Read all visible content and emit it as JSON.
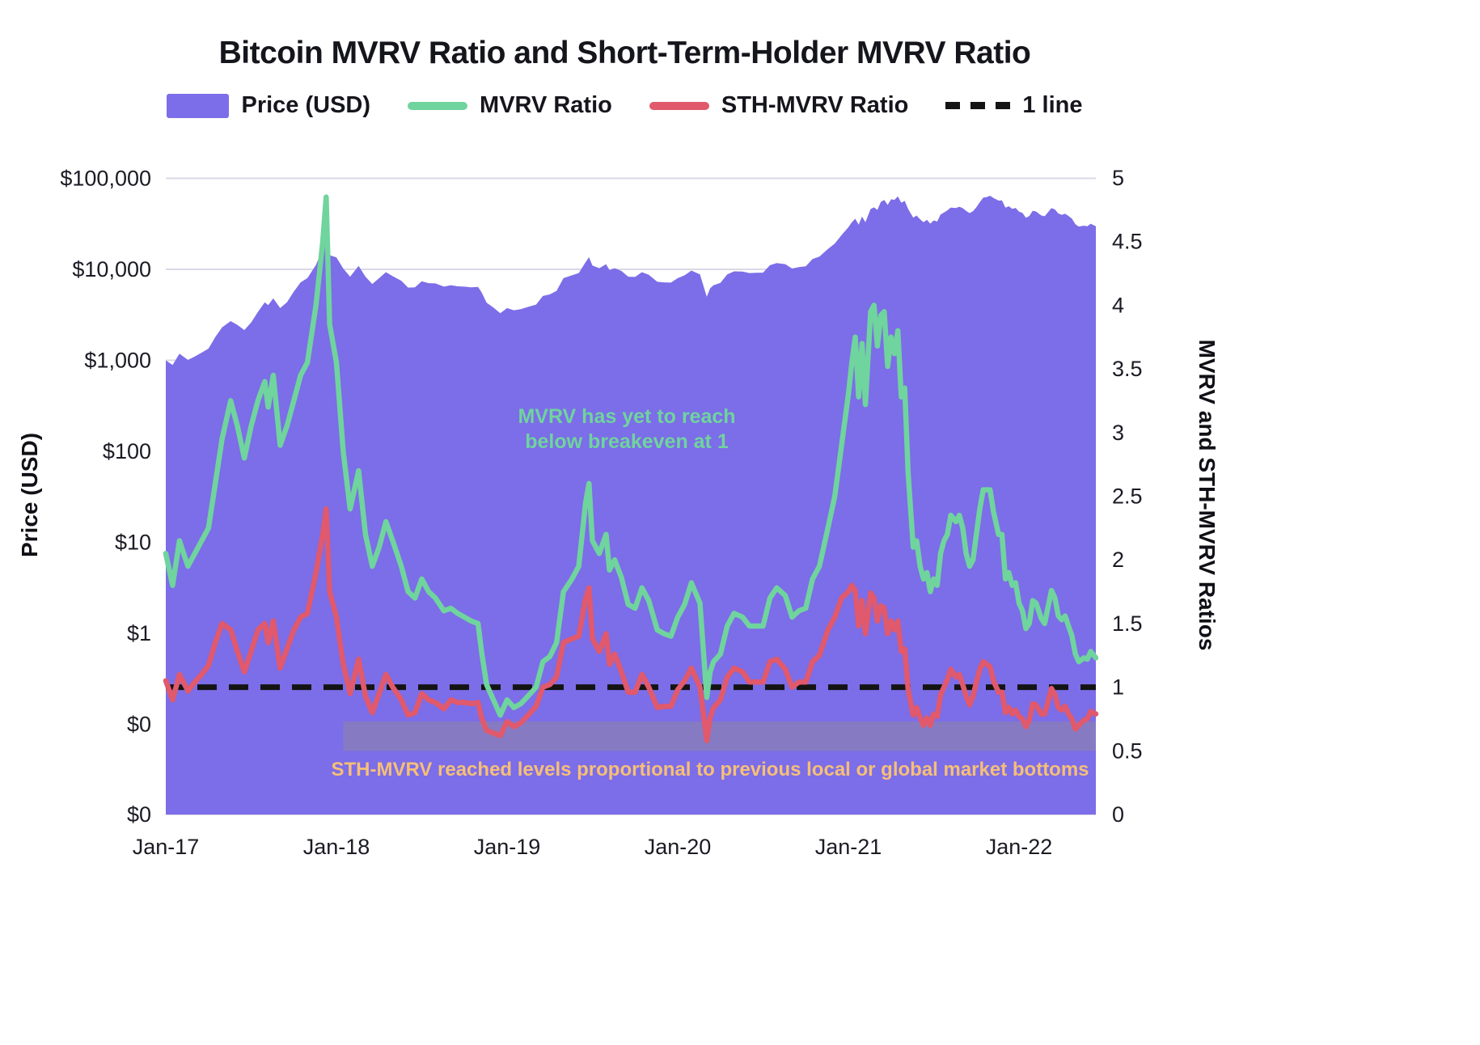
{
  "header": {
    "title": "Bitcoin MVRV Ratio and Short-Term-Holder MVRV Ratio"
  },
  "legend": {
    "items": [
      {
        "label": "Price (USD)",
        "swatch": "area",
        "color": "#7c6de8"
      },
      {
        "label": "MVRV Ratio",
        "swatch": "line",
        "color": "#6fd49d"
      },
      {
        "label": "STH-MVRV Ratio",
        "swatch": "line",
        "color": "#e0596c"
      },
      {
        "label": "1 line",
        "swatch": "dash",
        "color": "#141414"
      }
    ]
  },
  "chart_data": {
    "type": "area",
    "title": "Bitcoin MVRV Ratio and Short-Term-Holder MVRV Ratio",
    "x_unit": "decimal year (Jan 2017 - mid 2022)",
    "x": [
      2017.0,
      2017.04,
      2017.08,
      2017.13,
      2017.17,
      2017.21,
      2017.25,
      2017.29,
      2017.33,
      2017.38,
      2017.42,
      2017.46,
      2017.5,
      2017.54,
      2017.58,
      2017.6,
      2017.63,
      2017.67,
      2017.71,
      2017.75,
      2017.79,
      2017.83,
      2017.88,
      2017.92,
      2017.94,
      2017.96,
      2018.0,
      2018.04,
      2018.08,
      2018.13,
      2018.17,
      2018.21,
      2018.25,
      2018.29,
      2018.33,
      2018.38,
      2018.42,
      2018.46,
      2018.5,
      2018.54,
      2018.58,
      2018.63,
      2018.67,
      2018.71,
      2018.75,
      2018.79,
      2018.83,
      2018.85,
      2018.88,
      2018.92,
      2018.96,
      2019.0,
      2019.04,
      2019.08,
      2019.13,
      2019.17,
      2019.21,
      2019.25,
      2019.29,
      2019.33,
      2019.38,
      2019.42,
      2019.46,
      2019.48,
      2019.5,
      2019.54,
      2019.58,
      2019.6,
      2019.63,
      2019.67,
      2019.71,
      2019.75,
      2019.79,
      2019.83,
      2019.88,
      2019.92,
      2019.96,
      2020.0,
      2020.04,
      2020.08,
      2020.13,
      2020.17,
      2020.19,
      2020.21,
      2020.25,
      2020.29,
      2020.33,
      2020.38,
      2020.42,
      2020.46,
      2020.5,
      2020.54,
      2020.58,
      2020.63,
      2020.67,
      2020.71,
      2020.75,
      2020.79,
      2020.83,
      2020.88,
      2020.92,
      2020.96,
      2021.0,
      2021.02,
      2021.04,
      2021.06,
      2021.08,
      2021.1,
      2021.13,
      2021.15,
      2021.17,
      2021.19,
      2021.21,
      2021.23,
      2021.25,
      2021.27,
      2021.29,
      2021.31,
      2021.33,
      2021.35,
      2021.38,
      2021.4,
      2021.42,
      2021.44,
      2021.46,
      2021.48,
      2021.5,
      2021.52,
      2021.54,
      2021.56,
      2021.58,
      2021.6,
      2021.63,
      2021.65,
      2021.67,
      2021.69,
      2021.71,
      2021.73,
      2021.75,
      2021.77,
      2021.79,
      2021.81,
      2021.83,
      2021.85,
      2021.88,
      2021.9,
      2021.92,
      2021.94,
      2021.96,
      2021.98,
      2022.0,
      2022.02,
      2022.04,
      2022.06,
      2022.08,
      2022.1,
      2022.13,
      2022.15,
      2022.17,
      2022.19,
      2022.21,
      2022.23,
      2022.25,
      2022.27,
      2022.29,
      2022.31,
      2022.33,
      2022.35,
      2022.38,
      2022.4,
      2022.42,
      2022.45
    ],
    "series": [
      {
        "name": "Price (USD)",
        "kind": "area",
        "axis": "left",
        "color": "#7c6de8",
        "values": [
          1000,
          890,
          1185,
          1010,
          1100,
          1215,
          1345,
          1800,
          2300,
          2700,
          2450,
          2150,
          2600,
          3400,
          4350,
          4050,
          4800,
          3750,
          4350,
          5700,
          7200,
          8000,
          11200,
          17000,
          19500,
          14300,
          13500,
          10200,
          8300,
          10900,
          8300,
          6900,
          8000,
          9300,
          8400,
          7500,
          6300,
          6350,
          7400,
          7050,
          7000,
          6450,
          6700,
          6500,
          6450,
          6350,
          6400,
          5600,
          4300,
          3800,
          3300,
          3750,
          3550,
          3650,
          3900,
          4100,
          5100,
          5300,
          5800,
          8000,
          8600,
          9100,
          12000,
          13600,
          11000,
          10300,
          11400,
          9800,
          10300,
          9600,
          8300,
          8250,
          9300,
          8700,
          7300,
          7200,
          7150,
          8000,
          8600,
          9700,
          8800,
          5000,
          6200,
          6700,
          7100,
          8800,
          9500,
          9450,
          9100,
          9150,
          9200,
          11100,
          11700,
          11400,
          10200,
          10600,
          10800,
          13000,
          13800,
          16700,
          19200,
          23800,
          29000,
          33000,
          36000,
          31000,
          38000,
          33000,
          46000,
          48000,
          45000,
          55000,
          58000,
          51000,
          58800,
          58000,
          63500,
          54000,
          56500,
          46000,
          37000,
          39000,
          35500,
          33000,
          35000,
          31800,
          34500,
          33500,
          40000,
          42200,
          44500,
          47800,
          47100,
          48800,
          47000,
          43800,
          41500,
          43600,
          48200,
          54700,
          61300,
          62200,
          64400,
          60900,
          56900,
          57200,
          47700,
          49400,
          46200,
          47300,
          43100,
          41700,
          36900,
          38500,
          44000,
          43200,
          39100,
          38300,
          42400,
          47100,
          45500,
          41100,
          39700,
          40800,
          38600,
          36000,
          31300,
          29500,
          30200,
          29700,
          31700,
          29800
        ]
      },
      {
        "name": "MVRV Ratio",
        "kind": "line",
        "axis": "right",
        "color": "#6fd49d",
        "values": [
          2.05,
          1.8,
          2.15,
          1.95,
          2.05,
          2.15,
          2.25,
          2.6,
          2.95,
          3.25,
          3.05,
          2.8,
          3.05,
          3.25,
          3.4,
          3.2,
          3.45,
          2.9,
          3.05,
          3.25,
          3.45,
          3.55,
          4.0,
          4.5,
          4.85,
          3.85,
          3.55,
          2.85,
          2.4,
          2.7,
          2.2,
          1.95,
          2.1,
          2.3,
          2.15,
          1.95,
          1.75,
          1.7,
          1.85,
          1.75,
          1.7,
          1.6,
          1.62,
          1.58,
          1.55,
          1.52,
          1.5,
          1.28,
          1.02,
          0.9,
          0.78,
          0.9,
          0.84,
          0.87,
          0.94,
          1.0,
          1.2,
          1.24,
          1.35,
          1.75,
          1.85,
          1.95,
          2.45,
          2.6,
          2.15,
          2.05,
          2.2,
          1.92,
          2.0,
          1.86,
          1.65,
          1.62,
          1.78,
          1.68,
          1.45,
          1.42,
          1.4,
          1.55,
          1.65,
          1.82,
          1.66,
          0.92,
          1.12,
          1.2,
          1.26,
          1.48,
          1.58,
          1.55,
          1.48,
          1.48,
          1.48,
          1.7,
          1.78,
          1.72,
          1.55,
          1.6,
          1.62,
          1.85,
          1.95,
          2.25,
          2.5,
          2.9,
          3.3,
          3.55,
          3.75,
          3.28,
          3.7,
          3.22,
          3.95,
          4.0,
          3.68,
          3.92,
          3.95,
          3.52,
          3.75,
          3.62,
          3.8,
          3.28,
          3.35,
          2.68,
          2.1,
          2.15,
          1.95,
          1.85,
          1.9,
          1.75,
          1.85,
          1.8,
          2.05,
          2.15,
          2.2,
          2.35,
          2.3,
          2.35,
          2.25,
          2.05,
          1.95,
          2.0,
          2.2,
          2.4,
          2.55,
          2.55,
          2.55,
          2.38,
          2.2,
          2.2,
          1.85,
          1.9,
          1.8,
          1.82,
          1.66,
          1.6,
          1.46,
          1.5,
          1.68,
          1.66,
          1.54,
          1.5,
          1.63,
          1.76,
          1.7,
          1.56,
          1.53,
          1.56,
          1.48,
          1.4,
          1.26,
          1.2,
          1.23,
          1.22,
          1.28,
          1.23
        ]
      },
      {
        "name": "STH-MVRV Ratio",
        "kind": "line",
        "axis": "right",
        "color": "#e0596c",
        "values": [
          1.05,
          0.9,
          1.1,
          0.97,
          1.04,
          1.1,
          1.17,
          1.35,
          1.5,
          1.45,
          1.28,
          1.12,
          1.28,
          1.45,
          1.5,
          1.35,
          1.52,
          1.15,
          1.3,
          1.45,
          1.55,
          1.58,
          1.9,
          2.2,
          2.4,
          1.75,
          1.55,
          1.18,
          0.95,
          1.22,
          0.93,
          0.8,
          0.95,
          1.1,
          1.0,
          0.9,
          0.78,
          0.8,
          0.95,
          0.9,
          0.88,
          0.83,
          0.9,
          0.88,
          0.88,
          0.87,
          0.88,
          0.76,
          0.66,
          0.64,
          0.62,
          0.73,
          0.69,
          0.72,
          0.79,
          0.85,
          1.0,
          1.02,
          1.08,
          1.35,
          1.38,
          1.4,
          1.7,
          1.78,
          1.38,
          1.28,
          1.42,
          1.18,
          1.26,
          1.12,
          0.96,
          0.96,
          1.1,
          1.0,
          0.84,
          0.85,
          0.85,
          0.98,
          1.05,
          1.15,
          1.0,
          0.58,
          0.76,
          0.84,
          0.9,
          1.08,
          1.15,
          1.12,
          1.04,
          1.04,
          1.04,
          1.2,
          1.22,
          1.14,
          1.0,
          1.04,
          1.04,
          1.2,
          1.25,
          1.45,
          1.55,
          1.7,
          1.75,
          1.8,
          1.76,
          1.48,
          1.68,
          1.42,
          1.74,
          1.7,
          1.52,
          1.64,
          1.62,
          1.42,
          1.52,
          1.45,
          1.52,
          1.28,
          1.3,
          0.98,
          0.78,
          0.84,
          0.76,
          0.7,
          0.76,
          0.7,
          0.79,
          0.77,
          0.94,
          1.0,
          1.06,
          1.14,
          1.08,
          1.1,
          1.02,
          0.93,
          0.86,
          0.93,
          1.04,
          1.14,
          1.2,
          1.18,
          1.16,
          1.05,
          0.96,
          0.96,
          0.8,
          0.84,
          0.79,
          0.82,
          0.77,
          0.75,
          0.69,
          0.74,
          0.87,
          0.86,
          0.79,
          0.79,
          0.89,
          0.99,
          0.94,
          0.84,
          0.82,
          0.85,
          0.79,
          0.75,
          0.67,
          0.7,
          0.74,
          0.75,
          0.81,
          0.79
        ]
      },
      {
        "name": "1 line",
        "kind": "hline",
        "axis": "right",
        "color": "#141414",
        "value": 1
      }
    ],
    "left_axis": {
      "label": "Price (USD)",
      "scale": "log",
      "ticks": [
        {
          "label": "$100,000",
          "value": 100000
        },
        {
          "label": "$10,000",
          "value": 10000
        },
        {
          "label": "$1,000",
          "value": 1000
        },
        {
          "label": "$100",
          "value": 100
        },
        {
          "label": "$10",
          "value": 10
        },
        {
          "label": "$1",
          "value": 1
        },
        {
          "label": "$0",
          "value": 0.1
        },
        {
          "label": "$0",
          "value": 0
        }
      ]
    },
    "right_axis": {
      "label": "MVRV and STH-MVRV Ratios",
      "range": [
        0,
        5
      ],
      "ticks": [
        {
          "label": "0",
          "value": 0
        },
        {
          "label": "0.5",
          "value": 0.5
        },
        {
          "label": "1",
          "value": 1
        },
        {
          "label": "1.5",
          "value": 1.5
        },
        {
          "label": "2",
          "value": 2
        },
        {
          "label": "2.5",
          "value": 2.5
        },
        {
          "label": "3",
          "value": 3
        },
        {
          "label": "3.5",
          "value": 3.5
        },
        {
          "label": "4",
          "value": 4
        },
        {
          "label": "4.5",
          "value": 4.5
        },
        {
          "label": "5",
          "value": 5
        }
      ]
    },
    "x_ticks": [
      {
        "label": "Jan-17",
        "t": 2017
      },
      {
        "label": "Jan-18",
        "t": 2018
      },
      {
        "label": "Jan-19",
        "t": 2019
      },
      {
        "label": "Jan-20",
        "t": 2020
      },
      {
        "label": "Jan-21",
        "t": 2021
      },
      {
        "label": "Jan-22",
        "t": 2022
      }
    ],
    "annotations": {
      "mvrv_note": {
        "line1": "MVRV has yet to reach",
        "line2": "below breakeven at 1",
        "color": "#6fd49d"
      },
      "sth_note": {
        "text": "STH-MVRV reached levels proportional to previous local or global market bottoms",
        "color": "#f6bf77"
      },
      "band": {
        "t_start": 2018.04,
        "t_end": 2022.45,
        "ratio_top": 0.73,
        "ratio_bottom": 0.5,
        "color": "#8f8a9e",
        "opacity": 0.5
      }
    }
  }
}
